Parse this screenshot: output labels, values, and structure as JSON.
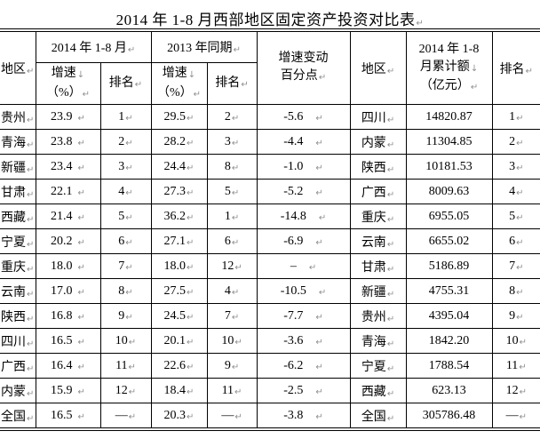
{
  "title": "2014 年 1-8 月西部地区固定资产投资对比表",
  "marks": {
    "para": "↵",
    "linebreak": "↓"
  },
  "table": {
    "headers": {
      "region_left": "地区",
      "period_2014": "2014 年 1-8 月",
      "period_2013": "2013 年同期",
      "growth_l1": "增速",
      "growth_l2": "（%）",
      "rank": "排名",
      "change_l1": "增速变动",
      "change_l2": "百分点",
      "region_right": "地区",
      "cumulative_l1": "2014 年 1-8",
      "cumulative_l2": "月累计额",
      "cumulative_l3": "（亿元）",
      "rank_right": "排名"
    },
    "rows": [
      {
        "region": "贵州",
        "g14": "23.9",
        "r14": "1",
        "g13": "29.5",
        "r13": "2",
        "chg": "-5.6",
        "region2": "四川",
        "amt": "14820.87",
        "ramt": "1",
        "bold_left": false,
        "bold_right": false
      },
      {
        "region": "青海",
        "g14": "23.8",
        "r14": "2",
        "g13": "28.2",
        "r13": "3",
        "chg": "-4.4",
        "region2": "内蒙",
        "amt": "11304.85",
        "ramt": "2",
        "bold_left": false,
        "bold_right": false
      },
      {
        "region": "新疆",
        "g14": "23.4",
        "r14": "3",
        "g13": "24.4",
        "r13": "8",
        "chg": "-1.0",
        "region2": "陕西",
        "amt": "10181.53",
        "ramt": "3",
        "bold_left": false,
        "bold_right": false
      },
      {
        "region": "甘肃",
        "g14": "22.1",
        "r14": "4",
        "g13": "27.3",
        "r13": "5",
        "chg": "-5.2",
        "region2": "广西",
        "amt": "8009.63",
        "ramt": "4",
        "bold_left": false,
        "bold_right": false
      },
      {
        "region": "西藏",
        "g14": "21.4",
        "r14": "5",
        "g13": "36.2",
        "r13": "1",
        "chg": "-14.8",
        "region2": "重庆",
        "amt": "6955.05",
        "ramt": "5",
        "bold_left": false,
        "bold_right": false
      },
      {
        "region": "宁夏",
        "g14": "20.2",
        "r14": "6",
        "g13": "27.1",
        "r13": "6",
        "chg": "-6.9",
        "region2": "云南",
        "amt": "6655.02",
        "ramt": "6",
        "bold_left": true,
        "bold_right": false
      },
      {
        "region": "重庆",
        "g14": "18.0",
        "r14": "7",
        "g13": "18.0",
        "r13": "12",
        "chg": "–",
        "region2": "甘肃",
        "amt": "5186.89",
        "ramt": "7",
        "bold_left": false,
        "bold_right": false
      },
      {
        "region": "云南",
        "g14": "17.0",
        "r14": "8",
        "g13": "27.5",
        "r13": "4",
        "chg": "-10.5",
        "region2": "新疆",
        "amt": "4755.31",
        "ramt": "8",
        "bold_left": false,
        "bold_right": false
      },
      {
        "region": "陕西",
        "g14": "16.8",
        "r14": "9",
        "g13": "24.5",
        "r13": "7",
        "chg": "-7.7",
        "region2": "贵州",
        "amt": "4395.04",
        "ramt": "9",
        "bold_left": false,
        "bold_right": false
      },
      {
        "region": "四川",
        "g14": "16.5",
        "r14": "10",
        "g13": "20.1",
        "r13": "10",
        "chg": "-3.6",
        "region2": "青海",
        "amt": "1842.20",
        "ramt": "10",
        "bold_left": false,
        "bold_right": false
      },
      {
        "region": "广西",
        "g14": "16.4",
        "r14": "11",
        "g13": "22.6",
        "r13": "9",
        "chg": "-6.2",
        "region2": "宁夏",
        "amt": "1788.54",
        "ramt": "11",
        "bold_left": false,
        "bold_right": true
      },
      {
        "region": "内蒙",
        "g14": "15.9",
        "r14": "12",
        "g13": "18.4",
        "r13": "11",
        "chg": "-2.5",
        "region2": "西藏",
        "amt": "623.13",
        "ramt": "12",
        "bold_left": false,
        "bold_right": false
      },
      {
        "region": "全国",
        "g14": "16.5",
        "r14": "—",
        "g13": "20.3",
        "r13": "—",
        "chg": "-3.8",
        "region2": "全国",
        "amt": "305786.48",
        "ramt": "—",
        "bold_left": false,
        "bold_right": false
      }
    ]
  }
}
